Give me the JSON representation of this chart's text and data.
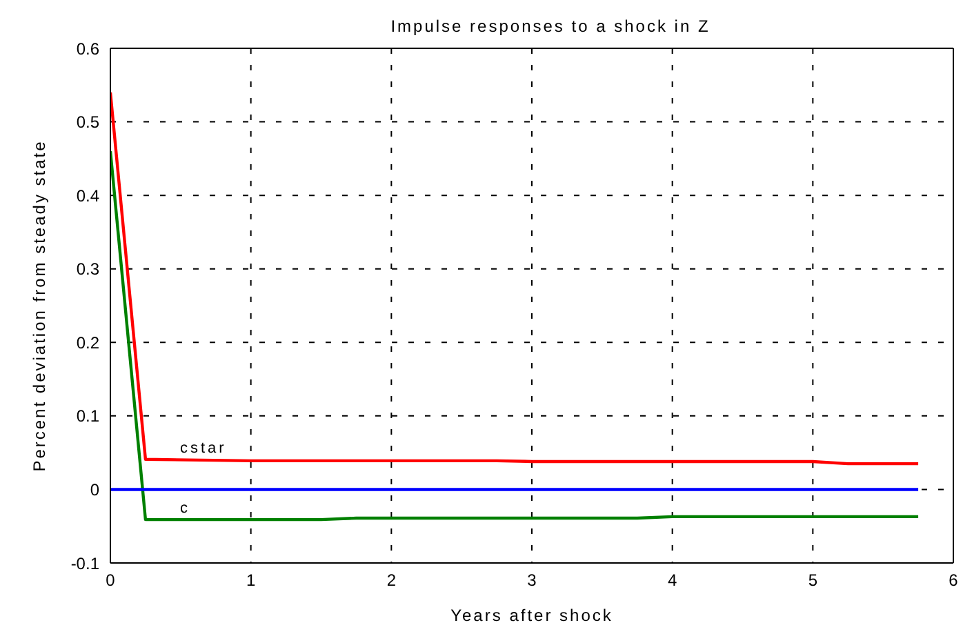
{
  "chart_data": {
    "type": "line",
    "title": "Impulse responses to a shock in Z",
    "xlabel": "Years after shock",
    "ylabel": "Percent deviation from steady state",
    "xlim": [
      0,
      6
    ],
    "xticks": [
      0,
      1,
      2,
      3,
      4,
      5,
      6
    ],
    "ylim": [
      -0.1,
      0.6
    ],
    "yticks": [
      -0.1,
      0,
      0.1,
      0.2,
      0.3,
      0.4,
      0.5,
      0.6
    ],
    "grid": true,
    "line_style": "solid",
    "marker": "none",
    "series": [
      {
        "name": "cstar",
        "color": "#ff0000",
        "x": [
          0,
          0.25,
          1,
          2,
          2.75,
          3,
          4,
          5,
          5.25,
          5.75
        ],
        "values": [
          0.54,
          0.041,
          0.039,
          0.039,
          0.039,
          0.038,
          0.038,
          0.038,
          0.035,
          0.035
        ]
      },
      {
        "name": "c",
        "color": "#008000",
        "x": [
          0,
          0.25,
          1,
          1.5,
          1.75,
          3,
          3.75,
          4,
          5,
          5.75
        ],
        "values": [
          0.46,
          -0.041,
          -0.041,
          -0.041,
          -0.039,
          -0.039,
          -0.039,
          -0.037,
          -0.037,
          -0.037
        ]
      },
      {
        "color": "#0000ff",
        "x": [
          0,
          5.75
        ],
        "values": [
          0,
          0
        ]
      }
    ]
  }
}
